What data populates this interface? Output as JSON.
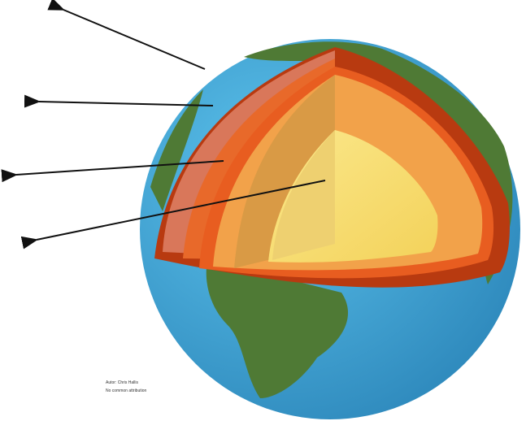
{
  "credit": {
    "author": "Autor: Chris Hallis",
    "license": "No common attribution"
  }
}
